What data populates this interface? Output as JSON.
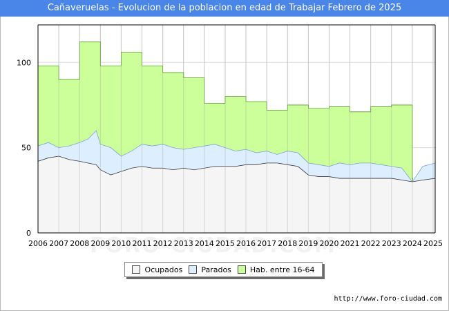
{
  "chart_data": {
    "type": "area",
    "title": "Cañaveruelas - Evolucion de la poblacion en edad de Trabajar Febrero de 2025",
    "xlabel": "",
    "ylabel": "",
    "xlim": [
      2006,
      2025.1
    ],
    "ylim": [
      0,
      122
    ],
    "yticks": [
      0,
      50,
      100
    ],
    "xticks": [
      "2006",
      "2007",
      "2008",
      "2009",
      "2010",
      "2011",
      "2012",
      "2013",
      "2014",
      "2015",
      "2016",
      "2017",
      "2018",
      "2019",
      "2020",
      "2021",
      "2022",
      "2023",
      "2024",
      "2025"
    ],
    "grid": true,
    "legend_position": "bottom-center",
    "colors": {
      "hab": "#ccff99",
      "hab_line": "#5a9e2a",
      "parados": "#ddeeff",
      "ocupados": "#f5f5f5",
      "ocupados_line": "#333333",
      "parados_line": "#7aa6d6"
    },
    "series": [
      {
        "name": "Hab. entre 16-64",
        "x": [
          2006,
          2007,
          2008,
          2009,
          2010,
          2011,
          2012,
          2013,
          2014,
          2015,
          2016,
          2017,
          2018,
          2019,
          2020,
          2021,
          2022,
          2023,
          2024
        ],
        "values": [
          98,
          90,
          112,
          98,
          106,
          98,
          94,
          91,
          76,
          80,
          77,
          72,
          75,
          73,
          74,
          71,
          74,
          75,
          32
        ]
      },
      {
        "name": "Parados",
        "x": [
          2006,
          2006.5,
          2007,
          2007.5,
          2008,
          2008.4,
          2008.8,
          2009,
          2009.5,
          2010,
          2010.5,
          2011,
          2011.5,
          2012,
          2012.5,
          2013,
          2013.5,
          2014,
          2014.5,
          2015,
          2015.5,
          2016,
          2016.5,
          2017,
          2017.5,
          2018,
          2018.5,
          2019,
          2019.5,
          2020,
          2020.5,
          2021,
          2021.5,
          2022,
          2022.5,
          2023,
          2023.5,
          2024,
          2024.5,
          2025.1
        ],
        "values": [
          51,
          53,
          50,
          51,
          53,
          55,
          60,
          52,
          50,
          45,
          48,
          52,
          51,
          52,
          50,
          49,
          50,
          51,
          52,
          50,
          48,
          49,
          47,
          48,
          46,
          48,
          47,
          41,
          40,
          39,
          41,
          40,
          41,
          41,
          40,
          39,
          38,
          30,
          39,
          41
        ]
      },
      {
        "name": "Ocupados",
        "x": [
          2006,
          2006.5,
          2007,
          2007.5,
          2008,
          2008.4,
          2008.8,
          2009,
          2009.5,
          2010,
          2010.5,
          2011,
          2011.5,
          2012,
          2012.5,
          2013,
          2013.5,
          2014,
          2014.5,
          2015,
          2015.5,
          2016,
          2016.5,
          2017,
          2017.5,
          2018,
          2018.5,
          2019,
          2019.5,
          2020,
          2020.5,
          2021,
          2021.5,
          2022,
          2022.5,
          2023,
          2023.5,
          2024,
          2024.5,
          2025.1
        ],
        "values": [
          42,
          44,
          45,
          43,
          42,
          41,
          40,
          37,
          34,
          36,
          38,
          39,
          38,
          38,
          37,
          38,
          37,
          38,
          39,
          39,
          39,
          40,
          40,
          41,
          41,
          40,
          39,
          34,
          33,
          33,
          32,
          32,
          32,
          32,
          32,
          32,
          31,
          30,
          31,
          32
        ]
      }
    ]
  },
  "legend": {
    "ocupados": "Ocupados",
    "parados": "Parados",
    "hab": "Hab. entre 16-64"
  },
  "watermark": "FORO-CIUDAD.COM",
  "source": "http://www.foro-ciudad.com"
}
